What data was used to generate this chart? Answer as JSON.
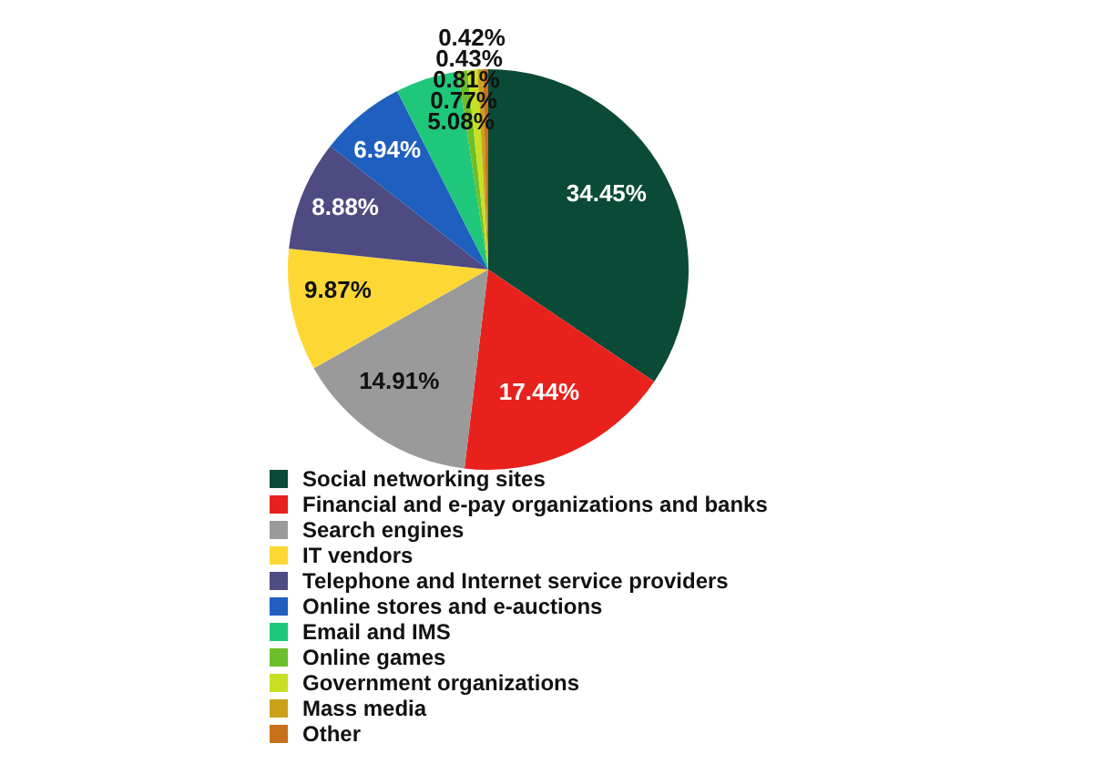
{
  "chart_data": {
    "type": "pie",
    "legend": "bottom",
    "categories": [
      "Social networking sites",
      "Financial and e-pay organizations and banks",
      "Search engines",
      "IT vendors",
      "Telephone and Internet service providers",
      "Online stores and e-auctions",
      "Email and IMS",
      "Online games",
      "Government organizations",
      "Mass media",
      "Other"
    ],
    "values": [
      34.45,
      17.44,
      14.91,
      9.87,
      8.88,
      6.94,
      5.08,
      0.77,
      0.81,
      0.43,
      0.42
    ],
    "value_labels": [
      "34.45%",
      "17.44%",
      "14.91%",
      "9.87%",
      "8.88%",
      "6.94%",
      "5.08%",
      "0.77%",
      "0.81%",
      "0.43%",
      "0.42%"
    ],
    "colors": [
      "#0b4a37",
      "#e8211d",
      "#9a9a9a",
      "#fdd835",
      "#4e4a82",
      "#1f5fbf",
      "#1fc77a",
      "#6cbf2a",
      "#c8e024",
      "#c9a21a",
      "#c8701a"
    ]
  }
}
